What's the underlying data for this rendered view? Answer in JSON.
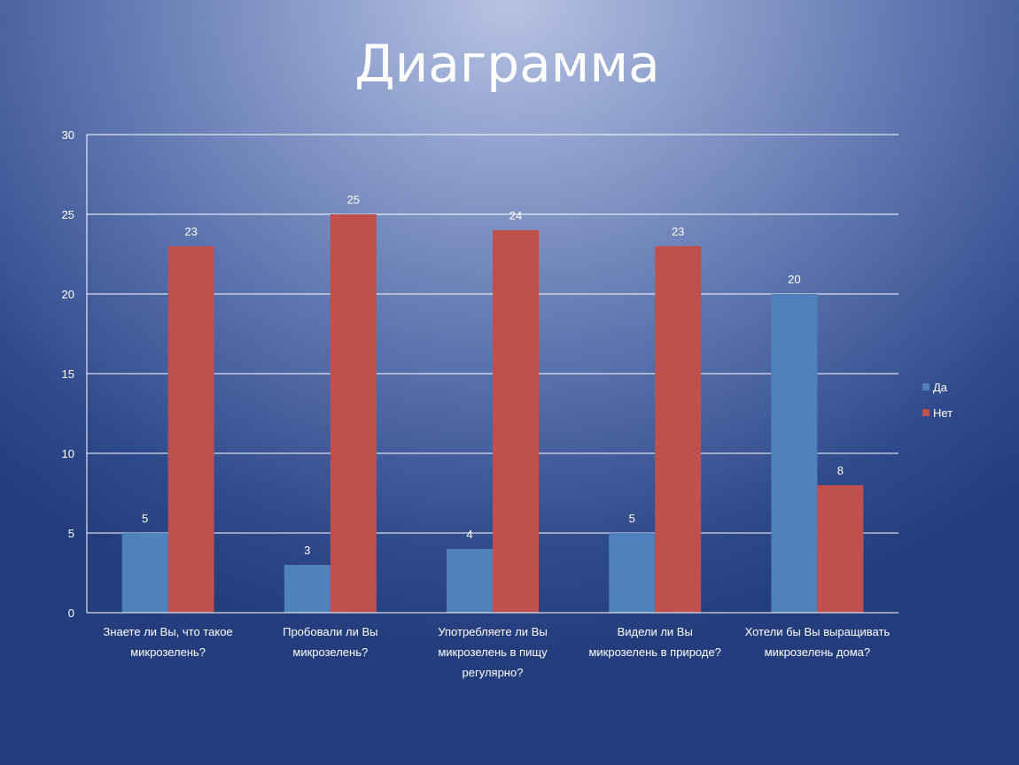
{
  "slide": {
    "title": "Диаграмма"
  },
  "chart_data": {
    "type": "bar",
    "categories": [
      [
        "Знаете ли Вы, что такое",
        "микрозелень?"
      ],
      [
        "Пробовали ли Вы",
        "микрозелень?"
      ],
      [
        "Употребляете ли Вы",
        "микрозелень в пищу",
        "регулярно?"
      ],
      [
        "Видели ли Вы",
        "микрозелень в природе?"
      ],
      [
        "Хотели бы Вы выращивать",
        "микрозелень дома?"
      ]
    ],
    "series": [
      {
        "name": "Да",
        "values": [
          5,
          3,
          4,
          5,
          20
        ],
        "color": "#4f81bd"
      },
      {
        "name": "Нет",
        "values": [
          23,
          25,
          24,
          23,
          8
        ],
        "color": "#c0504d"
      }
    ],
    "ylim": [
      0,
      30
    ],
    "yticks": [
      0,
      5,
      10,
      15,
      20,
      25,
      30
    ],
    "grid": true,
    "legend_position": "right",
    "data_labels": true
  }
}
